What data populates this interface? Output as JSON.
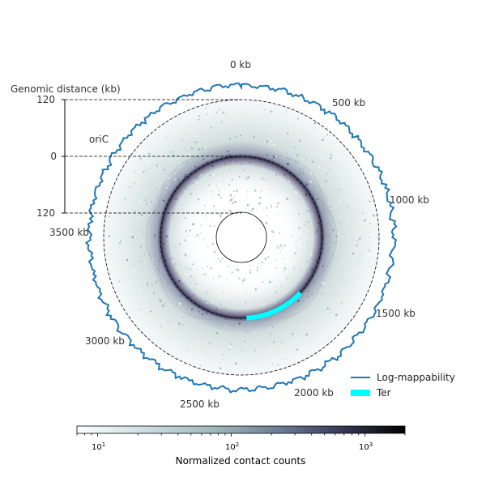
{
  "chart_data": {
    "type": "heatmap",
    "layout": "circular",
    "genome_length_kb": 4000,
    "position_labels": [
      {
        "text": "0 kb",
        "kb": 0
      },
      {
        "text": "500 kb",
        "kb": 500
      },
      {
        "text": "1000 kb",
        "kb": 1000
      },
      {
        "text": "1500 kb",
        "kb": 1500
      },
      {
        "text": "2000 kb",
        "kb": 2000
      },
      {
        "text": "2500 kb",
        "kb": 2500
      },
      {
        "text": "3000 kb",
        "kb": 3000
      },
      {
        "text": "3500 kb",
        "kb": 3500
      }
    ],
    "distance_axis": {
      "label": "Genomic distance (kb)",
      "ticks": [
        {
          "text": "120",
          "value": 120
        },
        {
          "text": "0",
          "value": 0
        },
        {
          "text": "120",
          "value": -120
        }
      ]
    },
    "annotations": [
      {
        "text": "oriC",
        "kb": 0
      }
    ],
    "ter_region": {
      "start_kb": 1480,
      "end_kb": 1960,
      "color": "#00ffff"
    },
    "legend": {
      "position": "bottom-right",
      "entries": [
        {
          "label": "Log-mappability",
          "color": "#1f77b4",
          "style": "line"
        },
        {
          "label": "Ter",
          "color": "#00ffff",
          "style": "thick-line"
        }
      ]
    },
    "colorbar": {
      "label": "Normalized contact counts",
      "scale": "log",
      "range": [
        7,
        2000
      ],
      "colormap": "bone_r",
      "ticks": [
        {
          "base": "10",
          "exp": "1",
          "value": 10
        },
        {
          "base": "10",
          "exp": "2",
          "value": 100
        },
        {
          "base": "10",
          "exp": "3",
          "value": 1000
        }
      ]
    }
  }
}
